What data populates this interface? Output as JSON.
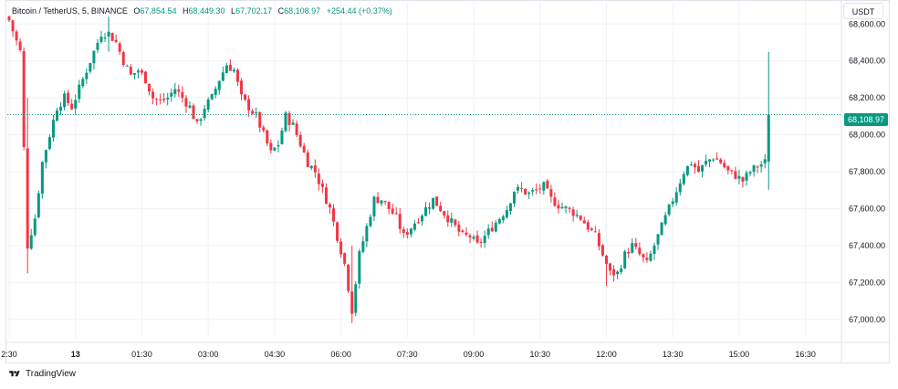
{
  "legend": {
    "symbol": "Bitcoin / TetherUS, 5, BINANCE",
    "open_label": "O",
    "open": "67,854.54",
    "high_label": "H",
    "high": "68,449.30",
    "low_label": "L",
    "low": "67,702.17",
    "close_label": "C",
    "close": "68,108.97",
    "change": "+254.44 (+0.37%)"
  },
  "currency_button": "USDT",
  "last_price_label": "68,108.97",
  "brand": {
    "name": "TradingView",
    "icon": "tradingview-logo-icon"
  },
  "colors": {
    "up": "#089981",
    "down": "#f23645",
    "grid": "#f0f3fa",
    "price_line": "#089981"
  },
  "chart_data": {
    "type": "candlestick",
    "ylim": [
      66900,
      68720
    ],
    "y_ticks": [
      "67,000.00",
      "67,200.00",
      "67,400.00",
      "67,600.00",
      "67,800.00",
      "68,000.00",
      "68,200.00",
      "68,400.00",
      "68,600.00"
    ],
    "y_tick_values": [
      67000,
      67200,
      67400,
      67600,
      67800,
      68000,
      68200,
      68400,
      68600
    ],
    "x_ticks": [
      "2:30",
      "13",
      "01:30",
      "03:00",
      "04:30",
      "06:00",
      "07:30",
      "09:00",
      "10:30",
      "12:00",
      "13:30",
      "15:00",
      "16:30"
    ],
    "x_tick_bars": [
      0,
      18,
      36,
      54,
      72,
      90,
      108,
      126,
      144,
      162,
      180,
      198,
      216
    ],
    "last_price": 68108.97,
    "close_path": [
      [
        0,
        68620
      ],
      [
        3,
        68450
      ],
      [
        5,
        67400
      ],
      [
        7,
        67550
      ],
      [
        9,
        67850
      ],
      [
        11,
        68000
      ],
      [
        13,
        68150
      ],
      [
        15,
        68200
      ],
      [
        17,
        68150
      ],
      [
        19,
        68250
      ],
      [
        21,
        68350
      ],
      [
        23,
        68450
      ],
      [
        25,
        68550
      ],
      [
        27,
        68550
      ],
      [
        29,
        68500
      ],
      [
        31,
        68400
      ],
      [
        33,
        68320
      ],
      [
        35,
        68350
      ],
      [
        37,
        68300
      ],
      [
        39,
        68200
      ],
      [
        41,
        68180
      ],
      [
        43,
        68200
      ],
      [
        45,
        68250
      ],
      [
        47,
        68200
      ],
      [
        49,
        68150
      ],
      [
        51,
        68050
      ],
      [
        53,
        68150
      ],
      [
        55,
        68200
      ],
      [
        57,
        68300
      ],
      [
        59,
        68380
      ],
      [
        61,
        68350
      ],
      [
        63,
        68200
      ],
      [
        65,
        68150
      ],
      [
        67,
        68100
      ],
      [
        69,
        68000
      ],
      [
        71,
        67900
      ],
      [
        73,
        67950
      ],
      [
        75,
        68100
      ],
      [
        77,
        68050
      ],
      [
        79,
        67950
      ],
      [
        81,
        67850
      ],
      [
        83,
        67800
      ],
      [
        85,
        67700
      ],
      [
        87,
        67600
      ],
      [
        89,
        67450
      ],
      [
        91,
        67300
      ],
      [
        93,
        67050
      ],
      [
        95,
        67350
      ],
      [
        97,
        67500
      ],
      [
        99,
        67650
      ],
      [
        101,
        67650
      ],
      [
        103,
        67600
      ],
      [
        105,
        67550
      ],
      [
        107,
        67450
      ],
      [
        109,
        67500
      ],
      [
        111,
        67550
      ],
      [
        113,
        67600
      ],
      [
        115,
        67650
      ],
      [
        117,
        67600
      ],
      [
        119,
        67550
      ],
      [
        121,
        67500
      ],
      [
        123,
        67450
      ],
      [
        125,
        67450
      ],
      [
        127,
        67400
      ],
      [
        129,
        67450
      ],
      [
        131,
        67500
      ],
      [
        133,
        67550
      ],
      [
        135,
        67600
      ],
      [
        137,
        67700
      ],
      [
        139,
        67700
      ],
      [
        141,
        67680
      ],
      [
        143,
        67700
      ],
      [
        145,
        67720
      ],
      [
        147,
        67650
      ],
      [
        149,
        67620
      ],
      [
        151,
        67600
      ],
      [
        153,
        67580
      ],
      [
        155,
        67550
      ],
      [
        157,
        67500
      ],
      [
        159,
        67450
      ],
      [
        161,
        67350
      ],
      [
        163,
        67250
      ],
      [
        165,
        67250
      ],
      [
        167,
        67350
      ],
      [
        169,
        67400
      ],
      [
        171,
        67350
      ],
      [
        173,
        67300
      ],
      [
        175,
        67400
      ],
      [
        177,
        67500
      ],
      [
        179,
        67600
      ],
      [
        181,
        67700
      ],
      [
        183,
        67800
      ],
      [
        185,
        67850
      ],
      [
        187,
        67800
      ],
      [
        189,
        67850
      ],
      [
        191,
        67880
      ],
      [
        193,
        67850
      ],
      [
        195,
        67800
      ],
      [
        197,
        67780
      ],
      [
        199,
        67750
      ],
      [
        201,
        67800
      ],
      [
        203,
        67830
      ],
      [
        205,
        67850
      ],
      [
        206,
        68108.97
      ]
    ],
    "special_bars": [
      {
        "bar": 5,
        "high": 68200,
        "low": 67250
      },
      {
        "bar": 93,
        "high": 67400,
        "low": 66980
      },
      {
        "bar": 27,
        "high": 68640,
        "low": 68450
      },
      {
        "bar": 162,
        "high": 67350,
        "low": 67180
      },
      {
        "bar": 206,
        "high": 68449.3,
        "low": 67702.17
      }
    ]
  }
}
